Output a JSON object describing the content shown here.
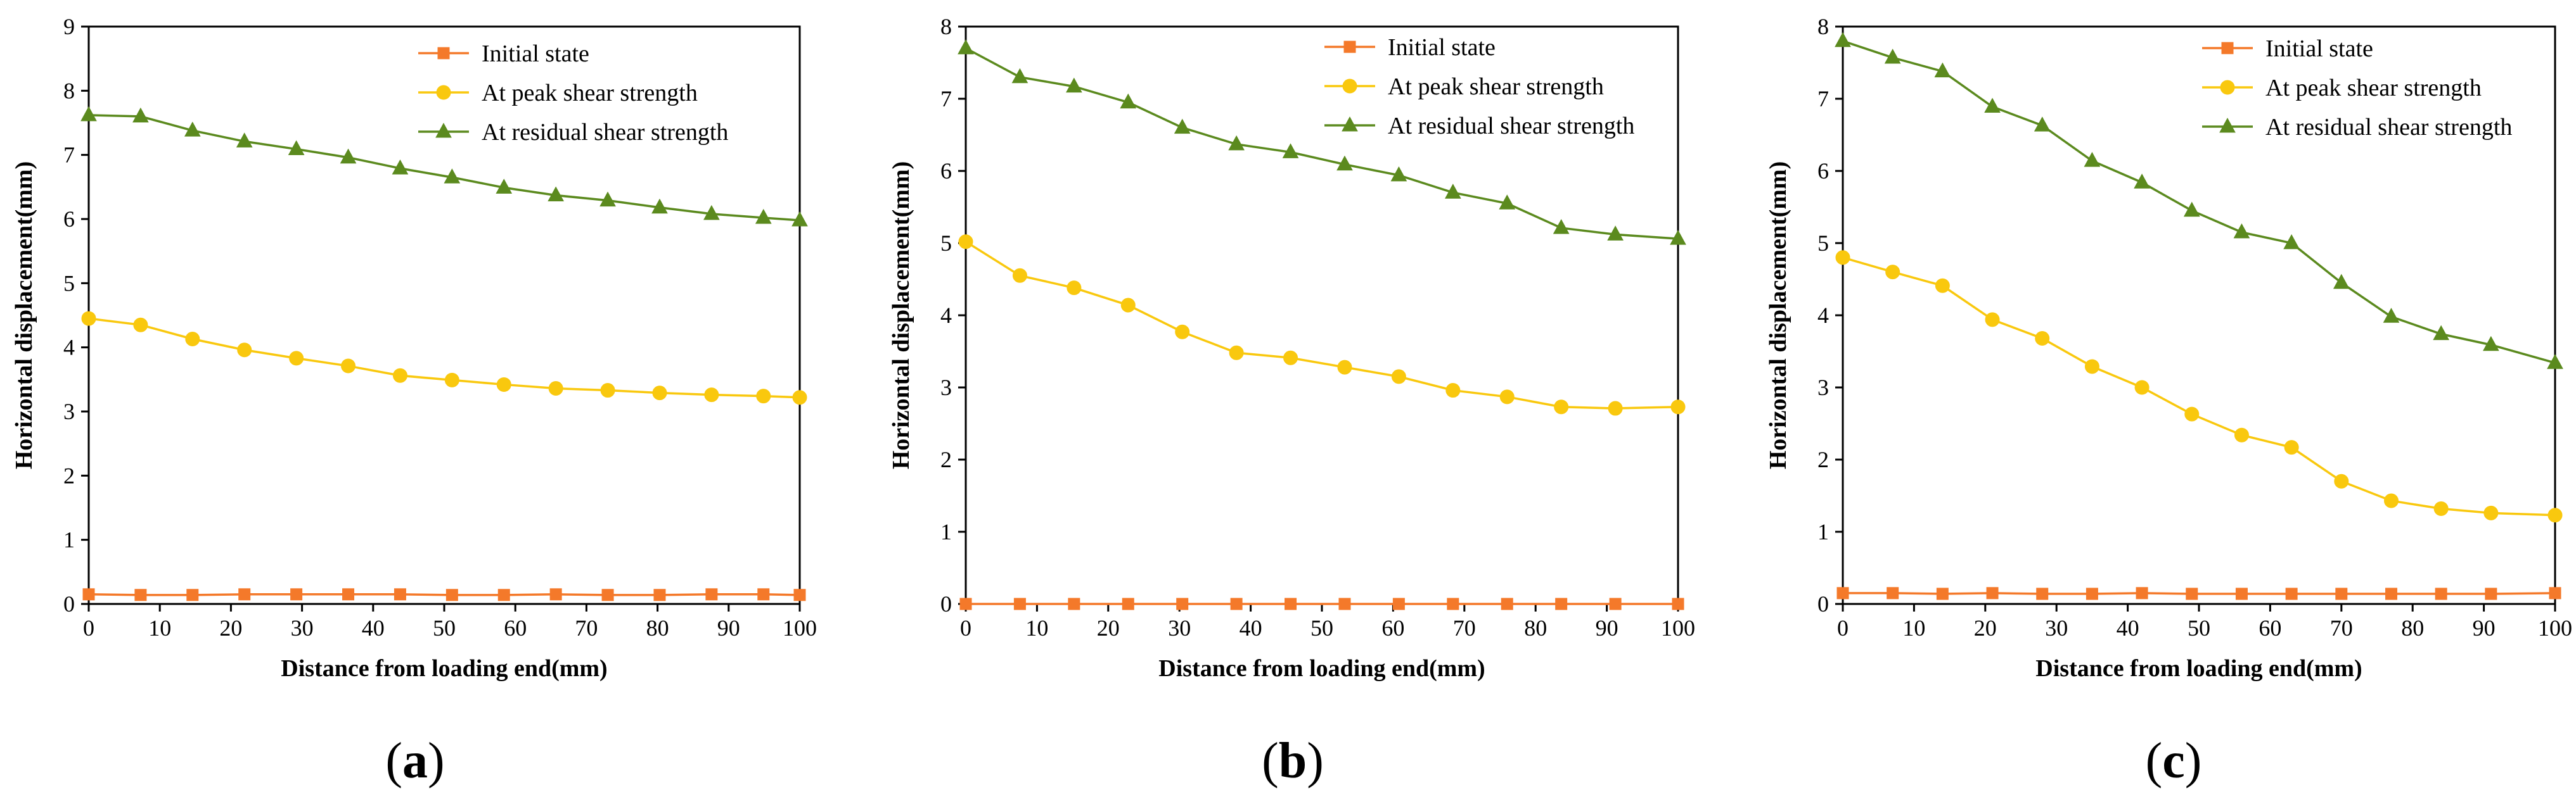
{
  "colors": {
    "initial": "#F4792A",
    "peak": "#F9C80E",
    "residual": "#5B8A1E",
    "axis": "#000000"
  },
  "chart_data": [
    {
      "type": "line",
      "panel_label": "(a)",
      "panel_letter": "a",
      "xlabel": "Distance from loading end(mm)",
      "ylabel": "Horizontal displacement(mm)",
      "xlim": [
        0,
        100
      ],
      "ylim": [
        0,
        9
      ],
      "xticks": [
        0,
        10,
        20,
        30,
        40,
        50,
        60,
        70,
        80,
        90,
        100
      ],
      "yticks": [
        0,
        1,
        2,
        3,
        4,
        5,
        6,
        7,
        8,
        9
      ],
      "legend_position": "top-right",
      "series": [
        {
          "name": "Initial state",
          "marker": "square",
          "color_key": "initial",
          "x": [
            0,
            7.3,
            14.6,
            21.9,
            29.2,
            36.5,
            43.8,
            51.1,
            58.4,
            65.7,
            73,
            80.3,
            87.6,
            94.9,
            100
          ],
          "y": [
            0.15,
            0.14,
            0.14,
            0.15,
            0.15,
            0.15,
            0.15,
            0.14,
            0.14,
            0.15,
            0.14,
            0.14,
            0.15,
            0.15,
            0.14
          ]
        },
        {
          "name": "At peak shear strength",
          "marker": "circle",
          "color_key": "peak",
          "x": [
            0,
            7.3,
            14.6,
            21.9,
            29.2,
            36.5,
            43.8,
            51.1,
            58.4,
            65.7,
            73,
            80.3,
            87.6,
            94.9,
            100
          ],
          "y": [
            4.45,
            4.35,
            4.13,
            3.96,
            3.83,
            3.71,
            3.56,
            3.49,
            3.42,
            3.36,
            3.33,
            3.29,
            3.26,
            3.24,
            3.22
          ]
        },
        {
          "name": "At residual shear strength",
          "marker": "triangle",
          "color_key": "residual",
          "x": [
            0,
            7.3,
            14.6,
            21.9,
            29.2,
            36.5,
            43.8,
            51.1,
            58.4,
            65.7,
            73,
            80.3,
            87.6,
            94.9,
            100
          ],
          "y": [
            7.62,
            7.6,
            7.38,
            7.21,
            7.09,
            6.96,
            6.79,
            6.65,
            6.49,
            6.37,
            6.29,
            6.18,
            6.08,
            6.02,
            5.98
          ]
        }
      ]
    },
    {
      "type": "line",
      "panel_label": "(b)",
      "panel_letter": "b",
      "xlabel": "Distance from loading end(mm)",
      "ylabel": "Horizontal displacement(mm)",
      "xlim": [
        0,
        100
      ],
      "ylim": [
        0,
        8
      ],
      "xticks": [
        0,
        10,
        20,
        30,
        40,
        50,
        60,
        70,
        80,
        90,
        100
      ],
      "yticks": [
        0,
        1,
        2,
        3,
        4,
        5,
        6,
        7,
        8
      ],
      "legend_position": "top-right",
      "series": [
        {
          "name": "Initial state",
          "marker": "square",
          "color_key": "initial",
          "x": [
            0,
            7.6,
            15.2,
            22.8,
            30.4,
            38,
            45.6,
            53.2,
            60.8,
            68.4,
            76,
            83.6,
            91.2,
            100
          ],
          "y": [
            0,
            0,
            0,
            0,
            0,
            0,
            0,
            0,
            0,
            0,
            0,
            0,
            0,
            0
          ]
        },
        {
          "name": "At peak shear strength",
          "marker": "circle",
          "color_key": "peak",
          "x": [
            0,
            7.6,
            15.2,
            22.8,
            30.4,
            38,
            45.6,
            53.2,
            60.8,
            68.4,
            76,
            83.6,
            91.2,
            100
          ],
          "y": [
            5.02,
            4.55,
            4.38,
            4.14,
            3.77,
            3.48,
            3.41,
            3.28,
            3.15,
            2.96,
            2.87,
            2.73,
            2.71,
            2.73
          ]
        },
        {
          "name": "At residual shear strength",
          "marker": "triangle",
          "color_key": "residual",
          "x": [
            0,
            7.6,
            15.2,
            22.8,
            30.4,
            38,
            45.6,
            53.2,
            60.8,
            68.4,
            76,
            83.6,
            91.2,
            100
          ],
          "y": [
            7.7,
            7.3,
            7.17,
            6.95,
            6.6,
            6.37,
            6.26,
            6.09,
            5.94,
            5.7,
            5.55,
            5.21,
            5.12,
            5.06
          ]
        }
      ]
    },
    {
      "type": "line",
      "panel_label": "(c)",
      "panel_letter": "c",
      "xlabel": "Distance from loading end(mm)",
      "ylabel": "Horizontal displacement(mm)",
      "xlim": [
        0,
        100
      ],
      "ylim": [
        0,
        8
      ],
      "xticks": [
        0,
        10,
        20,
        30,
        40,
        50,
        60,
        70,
        80,
        90,
        100
      ],
      "yticks": [
        0,
        1,
        2,
        3,
        4,
        5,
        6,
        7,
        8
      ],
      "legend_position": "top-right",
      "series": [
        {
          "name": "Initial state",
          "marker": "square",
          "color_key": "initial",
          "x": [
            0,
            7,
            14,
            21,
            28,
            35,
            42,
            49,
            56,
            63,
            70,
            77,
            84,
            91,
            100
          ],
          "y": [
            0.15,
            0.15,
            0.14,
            0.15,
            0.14,
            0.14,
            0.15,
            0.14,
            0.14,
            0.14,
            0.14,
            0.14,
            0.14,
            0.14,
            0.15
          ]
        },
        {
          "name": "At peak shear strength",
          "marker": "circle",
          "color_key": "peak",
          "x": [
            0,
            7,
            14,
            21,
            28,
            35,
            42,
            49,
            56,
            63,
            70,
            77,
            84,
            91,
            100
          ],
          "y": [
            4.8,
            4.6,
            4.41,
            3.94,
            3.68,
            3.29,
            3.0,
            2.63,
            2.34,
            2.17,
            1.7,
            1.43,
            1.32,
            1.26,
            1.23
          ]
        },
        {
          "name": "At residual shear strength",
          "marker": "triangle",
          "color_key": "residual",
          "x": [
            0,
            7,
            14,
            21,
            28,
            35,
            42,
            49,
            56,
            63,
            70,
            77,
            84,
            91,
            100
          ],
          "y": [
            7.8,
            7.57,
            7.38,
            6.89,
            6.63,
            6.14,
            5.84,
            5.45,
            5.15,
            5.0,
            4.45,
            3.98,
            3.74,
            3.59,
            3.34
          ]
        }
      ]
    }
  ]
}
